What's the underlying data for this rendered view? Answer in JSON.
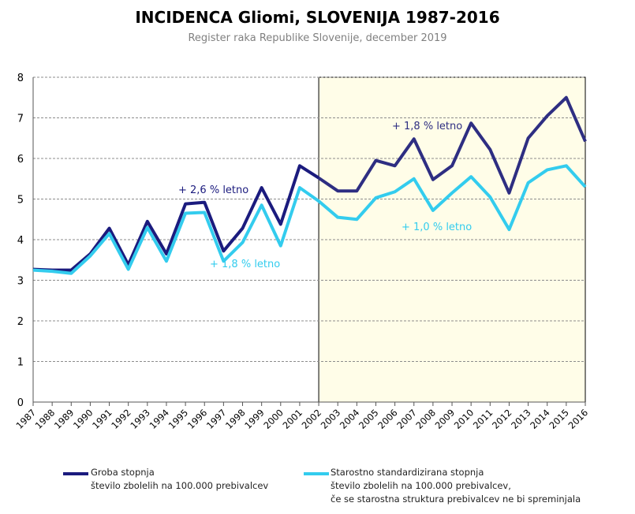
{
  "chart_data": {
    "type": "line",
    "title": "INCIDENCA Gliomi, SLOVENIJA 1987-2016",
    "subtitle": "Register raka Republike Slovenije, december 2019",
    "x": [
      1987,
      1988,
      1989,
      1990,
      1991,
      1992,
      1993,
      1994,
      1995,
      1996,
      1997,
      1998,
      1999,
      2000,
      2001,
      2002,
      2003,
      2004,
      2005,
      2006,
      2007,
      2008,
      2009,
      2010,
      2011,
      2012,
      2013,
      2014,
      2015,
      2016
    ],
    "ylim": [
      0,
      8
    ],
    "yticks": [
      0,
      1,
      2,
      3,
      4,
      5,
      6,
      7,
      8
    ],
    "grid": true,
    "highlight_range": [
      2002,
      2016
    ],
    "series": [
      {
        "name": "Groba stopnja",
        "description": "število zbolelih na 100.000 prebivalcev",
        "color": "#1b1b7e",
        "color_highlight": "#2e2e82",
        "values": [
          3.27,
          3.25,
          3.25,
          3.65,
          4.28,
          3.38,
          4.45,
          3.65,
          4.88,
          4.92,
          3.72,
          4.28,
          5.28,
          4.38,
          5.82,
          5.52,
          5.2,
          5.2,
          5.95,
          5.82,
          6.48,
          5.48,
          5.82,
          6.87,
          6.22,
          5.15,
          6.5,
          7.05,
          7.5,
          6.42
        ]
      },
      {
        "name": "Starostno standardizirana stopnja",
        "description": "število zbolelih na 100.000 prebivalcev,",
        "description2": "če se starostna struktura prebivalcev ne bi spreminjala",
        "color": "#33ccee",
        "values": [
          3.25,
          3.22,
          3.17,
          3.6,
          4.15,
          3.27,
          4.3,
          3.47,
          4.65,
          4.67,
          3.47,
          3.93,
          4.85,
          3.85,
          5.28,
          4.95,
          4.55,
          4.5,
          5.03,
          5.18,
          5.5,
          4.72,
          5.15,
          5.55,
          5.05,
          4.25,
          5.4,
          5.72,
          5.82,
          5.3
        ]
      }
    ],
    "annotations": [
      {
        "text": "+ 2,6 % letno",
        "color": "#1b1b7e"
      },
      {
        "text": "+ 1,8 % letno",
        "color": "#33ccee"
      },
      {
        "text": "+ 1,8 % letno",
        "color": "#2e2e82"
      },
      {
        "text": "+ 1,0 % letno",
        "color": "#33ccee"
      }
    ],
    "legend_position": "bottom"
  }
}
